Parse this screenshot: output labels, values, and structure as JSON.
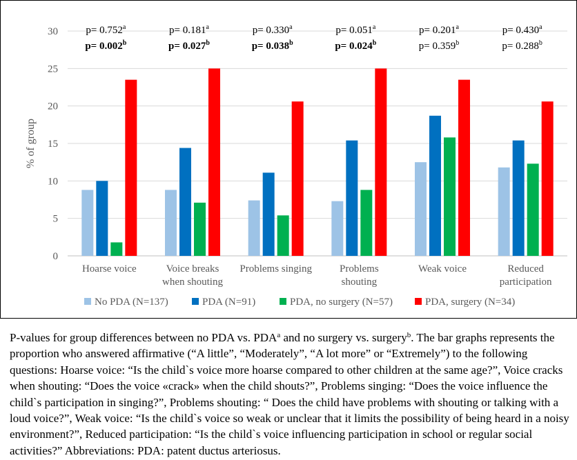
{
  "chart_data": {
    "type": "bar",
    "ylabel": "% of group",
    "ylim": [
      0,
      30
    ],
    "yticks": [
      0,
      5,
      10,
      15,
      20,
      25,
      30
    ],
    "grid": true,
    "legend_position": "bottom",
    "categories": [
      [
        "Hoarse voice"
      ],
      [
        "Voice breaks",
        "when shouting"
      ],
      [
        "Problems singing"
      ],
      [
        "Problems",
        "shouting"
      ],
      [
        "Weak voice"
      ],
      [
        "Reduced",
        "participation"
      ]
    ],
    "series": [
      {
        "name": "No PDA (N=137)",
        "color": "#9DC3E6",
        "values": [
          8.8,
          8.8,
          7.4,
          7.3,
          12.5,
          11.8
        ]
      },
      {
        "name": "PDA (N=91)",
        "color": "#0070C0",
        "values": [
          10.0,
          14.4,
          11.1,
          15.4,
          18.7,
          15.4
        ]
      },
      {
        "name": "PDA, no surgery (N=57)",
        "color": "#00B050",
        "values": [
          1.8,
          7.1,
          5.4,
          8.8,
          15.8,
          12.3
        ]
      },
      {
        "name": "PDA, surgery (N=34)",
        "color": "#FF0000",
        "values": [
          23.5,
          25.0,
          20.6,
          25.0,
          23.5,
          20.6
        ]
      }
    ],
    "annotations": [
      {
        "p_a": "p= 0.752",
        "p_b": "p= 0.002",
        "sup_a": "a",
        "sup_b": "b",
        "bold_b": true
      },
      {
        "p_a": "p= 0.181",
        "p_b": "p= 0.027",
        "sup_a": "a",
        "sup_b": "b",
        "bold_b": true
      },
      {
        "p_a": "p= 0.330",
        "p_b": "p= 0.038",
        "sup_a": "a",
        "sup_b": "b",
        "bold_b": true
      },
      {
        "p_a": "p= 0.051",
        "p_b": "p= 0.024",
        "sup_a": "a",
        "sup_b": "b",
        "bold_b": true
      },
      {
        "p_a": "p= 0.201",
        "p_b": "p= 0.359",
        "sup_a": "a",
        "sup_b": "b",
        "bold_b": false
      },
      {
        "p_a": "p= 0.430",
        "p_b": "p= 0.288",
        "sup_a": "a",
        "sup_b": "b",
        "bold_b": false
      }
    ]
  },
  "caption": {
    "part1": "P-values for group differences between no PDA vs. PDA",
    "sup1": "a",
    "part2": " and no surgery vs. surgery",
    "sup2": "b",
    "part3": ". The bar graphs represents the proportion who answered affirmative (“A little”, “Moderately”, “A lot more” or “Extremely”) to the following questions: Hoarse voice: “Is the child`s voice more hoarse compared to other children at the same age?”, Voice cracks when shouting: “Does the voice «crack» when the child shouts?”, Problems singing: “Does the voice influence the child`s participation in singing?”, Problems shouting: “ Does the child have problems with shouting or talking with a loud voice?”, Weak voice: “Is the child`s voice so weak or unclear that it limits the possibility of being heard in a noisy environment?”, Reduced participation: “Is the child`s voice influencing participation in school or regular social activities?” Abbreviations: PDA: patent ductus arteriosus."
  }
}
